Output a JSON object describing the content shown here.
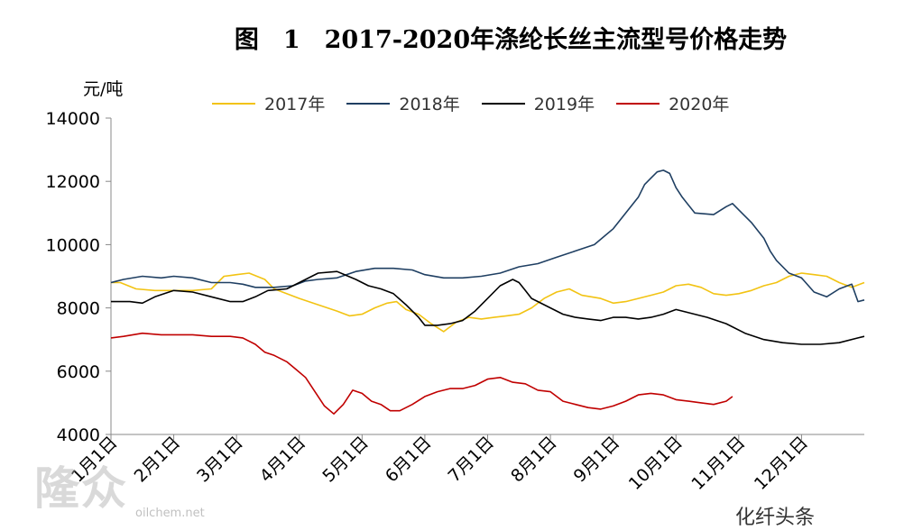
{
  "chart_data": {
    "type": "line",
    "title": "图　1　2017-2020年涤纶长丝主流型号价格走势",
    "ylabel": "元/吨",
    "xlabel": "",
    "ylim": [
      4000,
      14000
    ],
    "yticks": [
      4000,
      6000,
      8000,
      10000,
      12000,
      14000
    ],
    "xlim": [
      1,
      13
    ],
    "x_ticks": [
      1,
      2,
      3,
      4,
      5,
      6,
      7,
      8,
      9,
      10,
      11,
      12
    ],
    "x_tick_labels": [
      "1月1日",
      "2月1日",
      "3月1日",
      "4月1日",
      "5月1日",
      "6月1日",
      "7月1日",
      "8月1日",
      "9月1日",
      "10月1日",
      "11月1日",
      "12月1日"
    ],
    "legend_position": "top",
    "grid": false,
    "series": [
      {
        "name": "2017年",
        "color": "#f2c313",
        "x": [
          1.0,
          1.15,
          1.4,
          1.7,
          2.0,
          2.3,
          2.6,
          2.8,
          3.0,
          3.2,
          3.45,
          3.6,
          4.0,
          4.3,
          4.6,
          4.8,
          5.0,
          5.2,
          5.4,
          5.55,
          5.7,
          5.9,
          6.1,
          6.3,
          6.5,
          6.7,
          6.9,
          7.1,
          7.3,
          7.5,
          7.7,
          7.9,
          8.1,
          8.3,
          8.5,
          8.8,
          9.0,
          9.2,
          9.4,
          9.6,
          9.8,
          10.0,
          10.2,
          10.4,
          10.6,
          10.8,
          11.0,
          11.2,
          11.4,
          11.6,
          11.8,
          12.0,
          12.2,
          12.4,
          12.6,
          12.8,
          13.0
        ],
        "y": [
          8800,
          8800,
          8600,
          8550,
          8550,
          8550,
          8600,
          9000,
          9050,
          9100,
          8900,
          8600,
          8300,
          8100,
          7900,
          7750,
          7800,
          8000,
          8150,
          8200,
          7950,
          7800,
          7500,
          7250,
          7550,
          7700,
          7650,
          7700,
          7750,
          7800,
          8000,
          8300,
          8500,
          8600,
          8400,
          8300,
          8150,
          8200,
          8300,
          8400,
          8500,
          8700,
          8750,
          8650,
          8450,
          8400,
          8450,
          8550,
          8700,
          8800,
          9000,
          9100,
          9050,
          9000,
          8800,
          8650,
          8800
        ]
      },
      {
        "name": "2018年",
        "color": "#1f3f62",
        "x": [
          1.0,
          1.2,
          1.5,
          1.8,
          2.0,
          2.3,
          2.6,
          2.9,
          3.1,
          3.3,
          3.6,
          3.9,
          4.1,
          4.3,
          4.6,
          4.9,
          5.2,
          5.5,
          5.8,
          6.0,
          6.3,
          6.6,
          6.9,
          7.2,
          7.5,
          7.8,
          8.1,
          8.4,
          8.7,
          9.0,
          9.2,
          9.4,
          9.5,
          9.6,
          9.7,
          9.8,
          9.9,
          10.0,
          10.1,
          10.3,
          10.6,
          10.8,
          10.9,
          11.0,
          11.2,
          11.4,
          11.5,
          11.6,
          11.8,
          12.0,
          12.2,
          12.4,
          12.6,
          12.8,
          12.9,
          13.0
        ],
        "y": [
          8800,
          8900,
          9000,
          8950,
          9000,
          8950,
          8800,
          8800,
          8750,
          8650,
          8650,
          8700,
          8850,
          8900,
          8950,
          9150,
          9250,
          9250,
          9200,
          9050,
          8950,
          8950,
          9000,
          9100,
          9300,
          9400,
          9600,
          9800,
          10000,
          10500,
          11000,
          11500,
          11900,
          12100,
          12300,
          12350,
          12250,
          11800,
          11500,
          11000,
          10950,
          11200,
          11300,
          11100,
          10700,
          10200,
          9800,
          9500,
          9100,
          8950,
          8500,
          8350,
          8600,
          8750,
          8200,
          8250
        ]
      },
      {
        "name": "2019年",
        "color": "#000000",
        "x": [
          1.0,
          1.3,
          1.5,
          1.7,
          2.0,
          2.3,
          2.6,
          2.9,
          3.1,
          3.3,
          3.5,
          3.8,
          4.1,
          4.3,
          4.6,
          4.9,
          5.1,
          5.3,
          5.5,
          5.7,
          5.9,
          6.0,
          6.2,
          6.4,
          6.6,
          6.8,
          7.0,
          7.2,
          7.4,
          7.5,
          7.6,
          7.7,
          7.8,
          8.0,
          8.2,
          8.4,
          8.6,
          8.8,
          9.0,
          9.2,
          9.4,
          9.6,
          9.8,
          10.0,
          10.2,
          10.5,
          10.8,
          11.1,
          11.4,
          11.7,
          12.0,
          12.3,
          12.6,
          12.9,
          13.0
        ],
        "y": [
          8200,
          8200,
          8150,
          8350,
          8550,
          8500,
          8350,
          8200,
          8200,
          8350,
          8550,
          8600,
          8900,
          9100,
          9150,
          8900,
          8700,
          8600,
          8450,
          8100,
          7700,
          7450,
          7450,
          7500,
          7600,
          7900,
          8300,
          8700,
          8900,
          8800,
          8550,
          8300,
          8200,
          8000,
          7800,
          7700,
          7650,
          7600,
          7700,
          7700,
          7650,
          7700,
          7800,
          7950,
          7850,
          7700,
          7500,
          7200,
          7000,
          6900,
          6850,
          6850,
          6900,
          7050,
          7100
        ]
      },
      {
        "name": "2020年",
        "color": "#c00000",
        "x": [
          1.0,
          1.2,
          1.5,
          1.8,
          2.0,
          2.3,
          2.6,
          2.9,
          3.1,
          3.3,
          3.45,
          3.6,
          3.8,
          3.95,
          4.1,
          4.25,
          4.4,
          4.55,
          4.7,
          4.85,
          5.0,
          5.15,
          5.3,
          5.45,
          5.6,
          5.8,
          6.0,
          6.2,
          6.4,
          6.6,
          6.8,
          7.0,
          7.2,
          7.4,
          7.6,
          7.8,
          8.0,
          8.2,
          8.4,
          8.6,
          8.8,
          9.0,
          9.2,
          9.4,
          9.6,
          9.8,
          10.0,
          10.2,
          10.4,
          10.6,
          10.8,
          10.9
        ],
        "y": [
          7050,
          7100,
          7200,
          7150,
          7150,
          7150,
          7100,
          7100,
          7050,
          6850,
          6600,
          6500,
          6300,
          6050,
          5800,
          5350,
          4900,
          4650,
          4950,
          5400,
          5300,
          5050,
          4950,
          4750,
          4750,
          4950,
          5200,
          5350,
          5450,
          5450,
          5550,
          5750,
          5800,
          5650,
          5600,
          5400,
          5350,
          5050,
          4950,
          4850,
          4800,
          4900,
          5050,
          5250,
          5300,
          5250,
          5100,
          5050,
          5000,
          4950,
          5050,
          5200
        ]
      }
    ]
  },
  "watermark": {
    "logo_text": "隆众",
    "url_text": "oilchem.net",
    "brand_text": "化纤头条"
  }
}
